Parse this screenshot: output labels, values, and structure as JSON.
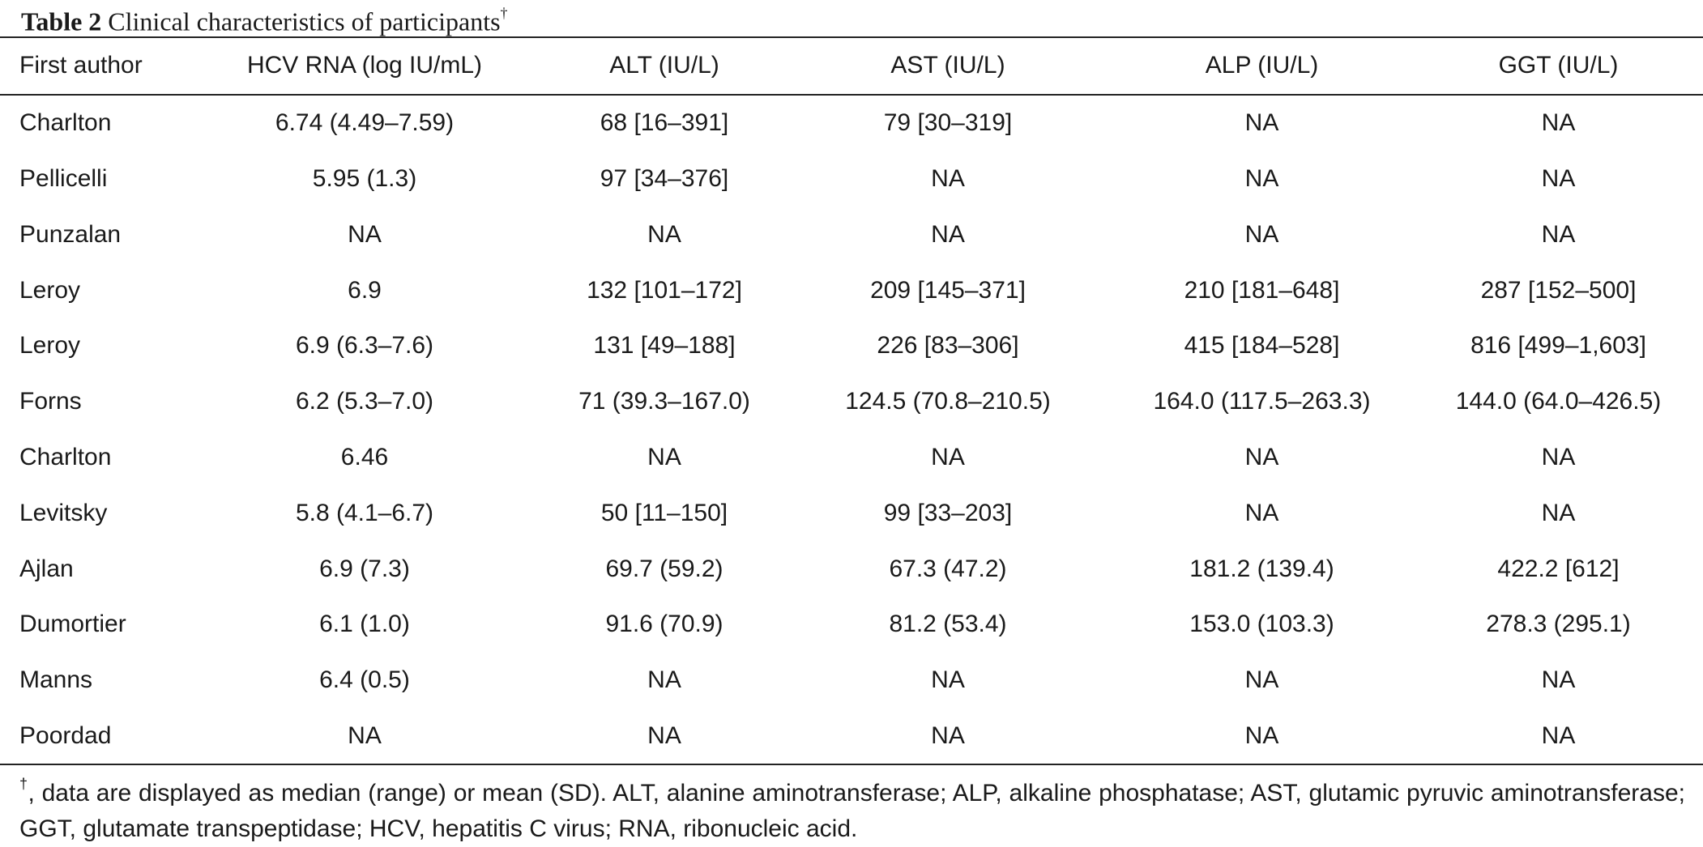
{
  "caption": {
    "label": "Table 2",
    "text": "Clinical characteristics of participants",
    "marker": "†"
  },
  "table": {
    "headers": [
      "First author",
      "HCV RNA (log IU/mL)",
      "ALT (IU/L)",
      "AST (IU/L)",
      "ALP (IU/L)",
      "GGT (IU/L)"
    ],
    "rows": [
      [
        "Charlton",
        "6.74 (4.49–7.59)",
        "68 [16–391]",
        "79 [30–319]",
        "NA",
        "NA"
      ],
      [
        "Pellicelli",
        "5.95 (1.3)",
        "97 [34–376]",
        "NA",
        "NA",
        "NA"
      ],
      [
        "Punzalan",
        "NA",
        "NA",
        "NA",
        "NA",
        "NA"
      ],
      [
        "Leroy",
        "6.9",
        "132 [101–172]",
        "209 [145–371]",
        "210 [181–648]",
        "287 [152–500]"
      ],
      [
        "Leroy",
        "6.9 (6.3–7.6)",
        "131 [49–188]",
        "226 [83–306]",
        "415 [184–528]",
        "816 [499–1,603]"
      ],
      [
        "Forns",
        "6.2 (5.3–7.0)",
        "71 (39.3–167.0)",
        "124.5 (70.8–210.5)",
        "164.0 (117.5–263.3)",
        "144.0 (64.0–426.5)"
      ],
      [
        "Charlton",
        "6.46",
        "NA",
        "NA",
        "NA",
        "NA"
      ],
      [
        "Levitsky",
        "5.8 (4.1–6.7)",
        "50 [11–150]",
        "99 [33–203]",
        "NA",
        "NA"
      ],
      [
        "Ajlan",
        "6.9 (7.3)",
        "69.7 (59.2)",
        "67.3 (47.2)",
        "181.2 (139.4)",
        "422.2 [612]"
      ],
      [
        "Dumortier",
        "6.1 (1.0)",
        "91.6 (70.9)",
        "81.2 (53.4)",
        "153.0 (103.3)",
        "278.3 (295.1)"
      ],
      [
        "Manns",
        "6.4 (0.5)",
        "NA",
        "NA",
        "NA",
        "NA"
      ],
      [
        "Poordad",
        "NA",
        "NA",
        "NA",
        "NA",
        "NA"
      ]
    ]
  },
  "footnote": {
    "marker": "†",
    "text": ", data are displayed as median (range) or mean (SD). ALT, alanine aminotransferase; ALP, alkaline phosphatase; AST, glutamic pyruvic aminotransferase; GGT, glutamate transpeptidase; HCV, hepatitis C virus; RNA, ribonucleic acid."
  }
}
